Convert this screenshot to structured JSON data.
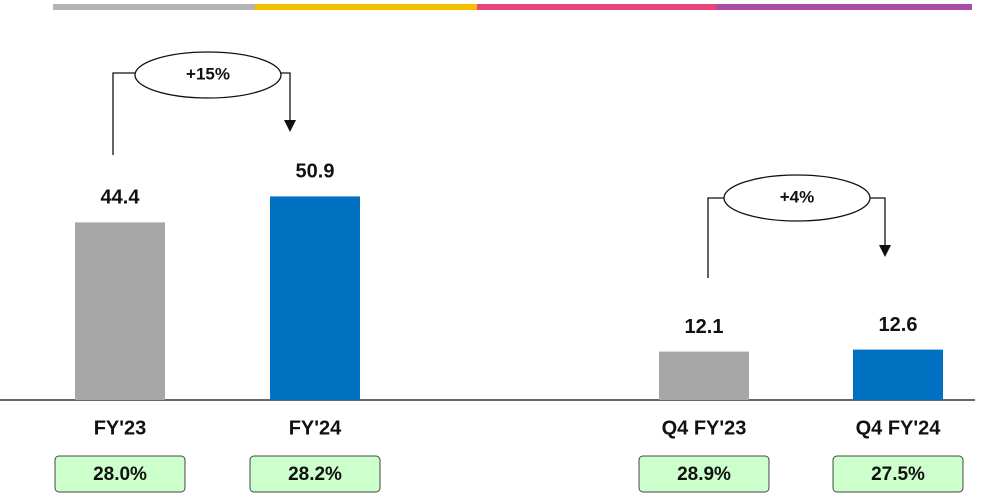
{
  "chart_data": {
    "type": "bar",
    "categories": [
      "FY'23",
      "FY'24",
      "Q4 FY'23",
      "Q4 FY'24"
    ],
    "values": [
      44.4,
      50.9,
      12.1,
      12.6
    ],
    "colors": [
      "#a6a6a6",
      "#0070c0",
      "#a6a6a6",
      "#0070c0"
    ],
    "margins": [
      "28.0%",
      "28.2%",
      "28.9%",
      "27.5%"
    ],
    "annotations": [
      "+15%",
      "+4%"
    ]
  }
}
